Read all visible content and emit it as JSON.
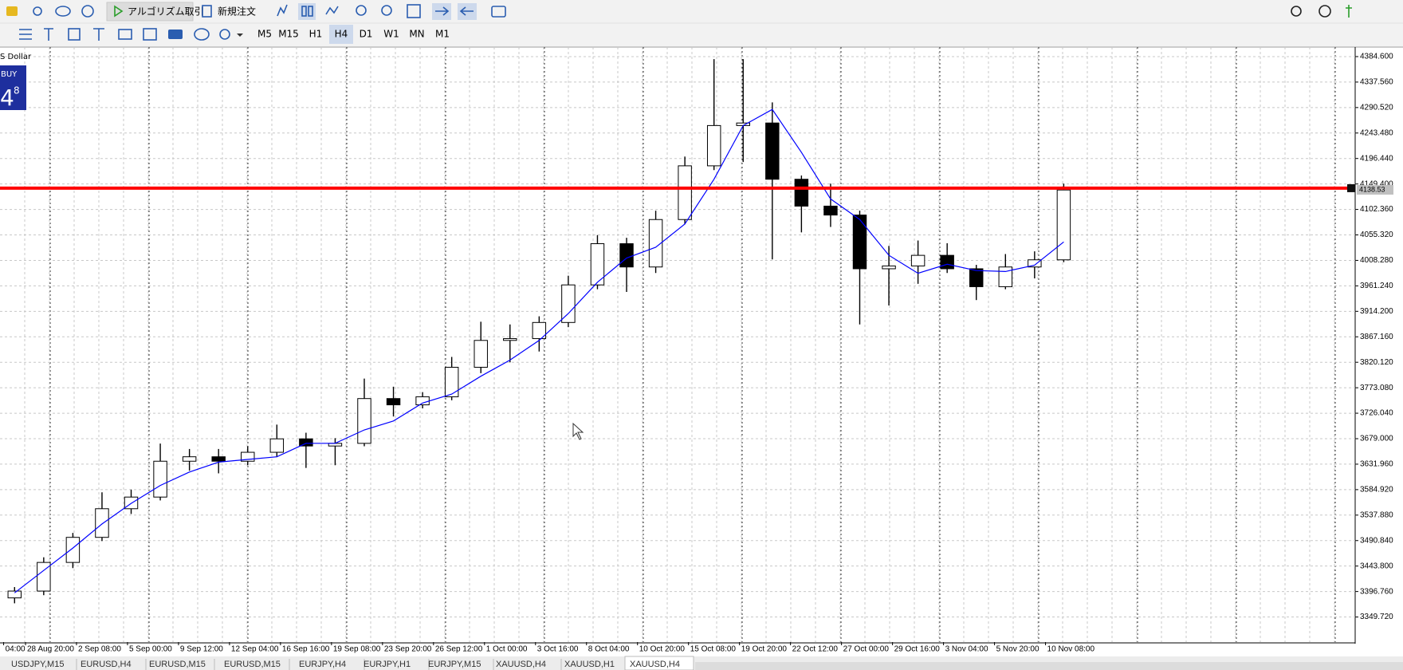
{
  "toolbar": {
    "algo_trading": "アルゴリズム取引",
    "new_order": "新規注文",
    "timeframes": [
      "M5",
      "M15",
      "H1",
      "H4",
      "D1",
      "W1",
      "MN",
      "M1"
    ],
    "active_timeframe": 3
  },
  "trade_panel": {
    "symbol_name": "S Dollar",
    "side": "BUY",
    "price_big": "4",
    "price_small": "8"
  },
  "chart_data": {
    "type": "candlestick",
    "candle_color": "#000000",
    "x": [
      4,
      12,
      20,
      28,
      36,
      44,
      52,
      60,
      68,
      76,
      84,
      92,
      100,
      108,
      116,
      124,
      132,
      140,
      148,
      156,
      164,
      172,
      180,
      188,
      196,
      204,
      212,
      220,
      228,
      236,
      244,
      252,
      260,
      268,
      276,
      284,
      292
    ],
    "candles": [
      [
        3385,
        3405,
        3375,
        3397.6
      ],
      [
        3397.6,
        3460,
        3390,
        3450.5
      ],
      [
        3450.5,
        3505,
        3440,
        3496.8
      ],
      [
        3496.8,
        3580,
        3490,
        3549.7
      ],
      [
        3549.7,
        3585,
        3540,
        3571.2
      ],
      [
        3571.2,
        3670,
        3565,
        3637.4
      ],
      [
        3637.4,
        3660,
        3620,
        3645.6
      ],
      [
        3645.6,
        3660,
        3615,
        3637.4
      ],
      [
        3637.4,
        3665,
        3630,
        3653.9
      ],
      [
        3653.9,
        3705,
        3645,
        3678.7
      ],
      [
        3678.7,
        3690,
        3625,
        3665.5
      ],
      [
        3665.5,
        3680,
        3630,
        3670.4
      ],
      [
        3670.4,
        3790,
        3665,
        3753.1
      ],
      [
        3753.1,
        3775,
        3720,
        3741.5
      ],
      [
        3741.5,
        3765,
        3735,
        3756.4
      ],
      [
        3756.4,
        3830,
        3750,
        3810.9
      ],
      [
        3810.9,
        3895,
        3800,
        3860.5
      ],
      [
        3860.5,
        3890,
        3820,
        3863.8
      ],
      [
        3863.8,
        3905,
        3840,
        3893.6
      ],
      [
        3893.6,
        3980,
        3885,
        3963.0
      ],
      [
        3963.0,
        4055,
        3955,
        4039.1
      ],
      [
        4039.1,
        4050,
        3950,
        3996.1
      ],
      [
        3996.1,
        4100,
        3985,
        4083.7
      ],
      [
        4083.7,
        4200,
        4075,
        4182.9
      ],
      [
        4182.9,
        4380,
        4175,
        4257.3
      ],
      [
        4257.3,
        4380,
        4190,
        4262
      ],
      [
        4262,
        4300,
        4010,
        4158.1
      ],
      [
        4158.1,
        4165,
        4060,
        4108.5
      ],
      [
        4108.5,
        4150,
        4070,
        4092.0
      ],
      [
        4092.0,
        4100,
        3890,
        3992.8
      ],
      [
        3992.8,
        4035,
        3925,
        3998
      ],
      [
        3998,
        4045,
        3965,
        4017.6
      ],
      [
        4017.6,
        4040,
        3985,
        3992.8
      ],
      [
        3992.8,
        4000,
        3935,
        3959.7
      ],
      [
        3959.7,
        4020,
        3955,
        3996.1
      ],
      [
        3996.1,
        4025,
        3975,
        4009.3
      ],
      [
        4009.3,
        4150,
        4005,
        4138.3
      ]
    ],
    "ma": {
      "color": "#0000ff",
      "values": [
        3394.3,
        3435.7,
        3477.0,
        3521.6,
        3559.6,
        3592.7,
        3617.5,
        3635.7,
        3640.7,
        3645.6,
        3670.4,
        3670.4,
        3695.2,
        3711.7,
        3744.8,
        3761.3,
        3794.4,
        3824.2,
        3860.5,
        3910.1,
        3968.0,
        4012.6,
        4032.5,
        4075.5,
        4158.1,
        4257.3,
        4287.1,
        4207.7,
        4121.7,
        4083.7,
        4017.6,
        3984.5,
        4001.1,
        3989.5,
        3987.8,
        3999.4,
        4042.4
      ]
    },
    "hline": {
      "value": 4141.6,
      "color": "#ff0000"
    },
    "current_price": 4138.53,
    "xlim": [
      0,
      372
    ],
    "ylim": [
      3303.4,
      4397.8
    ],
    "grid": true,
    "yticks": [
      {
        "value": 4384.6,
        "label": "4384.600"
      },
      {
        "value": 4337.56,
        "label": "4337.560"
      },
      {
        "value": 4290.52,
        "label": "4290.520"
      },
      {
        "value": 4243.48,
        "label": "4243.480"
      },
      {
        "value": 4196.44,
        "label": "4196.440"
      },
      {
        "value": 4149.4,
        "label": "4149.400"
      },
      {
        "value": 4102.36,
        "label": "4102.360"
      },
      {
        "value": 4055.32,
        "label": "4055.320"
      },
      {
        "value": 4008.28,
        "label": "4008.280"
      },
      {
        "value": 3961.24,
        "label": "3961.240"
      },
      {
        "value": 3914.2,
        "label": "3914.200"
      },
      {
        "value": 3867.16,
        "label": "3867.160"
      },
      {
        "value": 3820.12,
        "label": "3820.120"
      },
      {
        "value": 3773.08,
        "label": "3773.080"
      },
      {
        "value": 3726.04,
        "label": "3726.040"
      },
      {
        "value": 3679,
        "label": "3679.000"
      },
      {
        "value": 3631.96,
        "label": "3631.960"
      },
      {
        "value": 3584.92,
        "label": "3584.920"
      },
      {
        "value": 3537.88,
        "label": "3537.880"
      },
      {
        "value": 3490.84,
        "label": "3490.840"
      },
      {
        "value": 3443.8,
        "label": "3443.800"
      },
      {
        "value": 3396.76,
        "label": "3396.760"
      },
      {
        "value": 3349.72,
        "label": "3349.720"
      }
    ],
    "xticks": [
      {
        "value": 1,
        "label": "04:00"
      },
      {
        "value": 7,
        "label": "28 Aug 20:00"
      },
      {
        "value": 21,
        "label": "2 Sep 08:00"
      },
      {
        "value": 35,
        "label": "5 Sep 00:00"
      },
      {
        "value": 49,
        "label": "9 Sep 12:00"
      },
      {
        "value": 63,
        "label": "12 Sep 04:00"
      },
      {
        "value": 77,
        "label": "16 Sep 16:00"
      },
      {
        "value": 91,
        "label": "19 Sep 08:00"
      },
      {
        "value": 105,
        "label": "23 Sep 20:00"
      },
      {
        "value": 119,
        "label": "26 Sep 12:00"
      },
      {
        "value": 133,
        "label": "1 Oct 00:00"
      },
      {
        "value": 147,
        "label": "3 Oct 16:00"
      },
      {
        "value": 161,
        "label": "8 Oct 04:00"
      },
      {
        "value": 175,
        "label": "10 Oct 20:00"
      },
      {
        "value": 189,
        "label": "15 Oct 08:00"
      },
      {
        "value": 203,
        "label": "19 Oct 20:00"
      },
      {
        "value": 217,
        "label": "22 Oct 12:00"
      },
      {
        "value": 231,
        "label": "27 Oct 00:00"
      },
      {
        "value": 245,
        "label": "29 Oct 16:00"
      },
      {
        "value": 259,
        "label": "3 Nov 04:00"
      },
      {
        "value": 273,
        "label": "5 Nov 20:00"
      },
      {
        "value": 287,
        "label": "10 Nov 08:00"
      }
    ]
  },
  "tabs": [
    "USDJPY,M15",
    "EURUSD,H4",
    "EURUSD,M15",
    "EURUSD,M15",
    "EURJPY,H4",
    "EURJPY,H1",
    "EURJPY,M15",
    "XAUUSD,H4",
    "XAUUSD,H1",
    "XAUUSD,H4"
  ],
  "active_tab": 9
}
